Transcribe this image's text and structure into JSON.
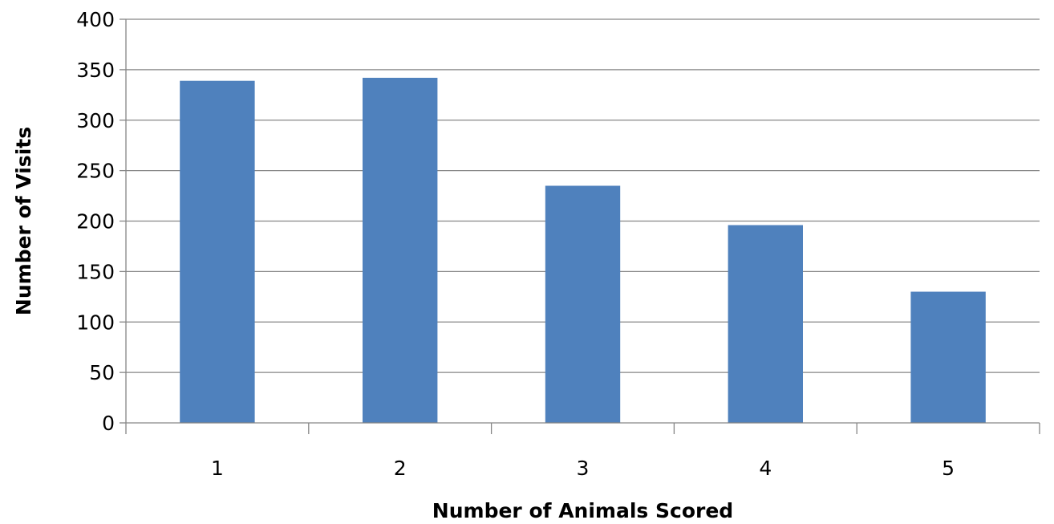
{
  "chart_data": {
    "type": "bar",
    "title": "",
    "xlabel": "Number of Animals Scored",
    "ylabel": "Number of Visits",
    "categories": [
      "1",
      "2",
      "3",
      "4",
      "5"
    ],
    "values": [
      339,
      342,
      235,
      196,
      130
    ],
    "ylim": [
      0,
      400
    ],
    "yticks": [
      0,
      50,
      100,
      150,
      200,
      250,
      300,
      350,
      400
    ],
    "grid": true,
    "legend": "none",
    "bar_color": "#4F81BD"
  }
}
